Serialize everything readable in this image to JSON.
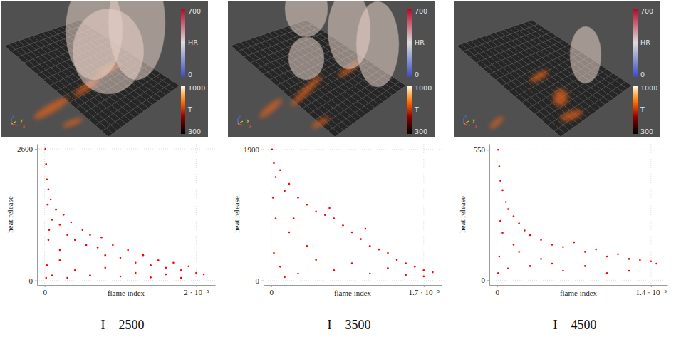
{
  "chart_data": [
    {
      "type": "scatter",
      "title": "I = 2500",
      "x_label": "flame index",
      "y_label": "heat release",
      "xlim": [
        -1e-06,
        2.25e-05
      ],
      "ylim": [
        -90,
        2700
      ],
      "xticks": [
        0,
        {
          "value": 2e-05,
          "label": "2 · 10⁻⁵"
        }
      ],
      "yticks": [
        0,
        2600
      ],
      "grid": true,
      "color": "#ff0000",
      "marker": "circle",
      "x": [
        1e-07,
        2e-07,
        3e-07,
        5e-07,
        4e-07,
        8e-07,
        1e-06,
        1.5e-06,
        2e-06,
        2.5e-06,
        3e-06,
        3.5e-06,
        4e-06,
        5e-06,
        5.5e-06,
        6e-06,
        7e-06,
        7.5e-06,
        8e-06,
        9e-06,
        1e-05,
        1.1e-05,
        1.2e-05,
        1.3e-05,
        1.4e-05,
        1.5e-05,
        1.6e-05,
        1.7e-05,
        1.8e-05,
        1.9e-05,
        2e-05,
        2.1e-05,
        3e-07,
        1e-06,
        2e-06,
        3e-06,
        4e-06,
        6e-06,
        8e-06,
        1e-05,
        1.2e-05,
        1.4e-05,
        1.6e-05,
        1.8e-05,
        5e-07,
        2e-06,
        2e-07,
        6e-07
      ],
      "values": [
        2600,
        2300,
        2000,
        1800,
        1500,
        1600,
        1200,
        1400,
        1100,
        1300,
        900,
        1150,
        800,
        1000,
        700,
        900,
        650,
        850,
        500,
        700,
        450,
        600,
        350,
        500,
        300,
        400,
        250,
        350,
        200,
        280,
        150,
        120,
        300,
        100,
        400,
        50,
        200,
        100,
        250,
        80,
        150,
        60,
        120,
        50,
        800,
        600,
        50,
        1000
      ],
      "colorbars": [
        {
          "label": "HR",
          "range": [
            0,
            700
          ],
          "ticks": [
            0,
            700
          ]
        },
        {
          "label": "T",
          "range": [
            300,
            1000
          ],
          "ticks": [
            300,
            1000
          ]
        }
      ],
      "view_axes": [
        "z",
        "y",
        "x"
      ]
    },
    {
      "type": "scatter",
      "title": "I = 3500",
      "x_label": "flame index",
      "y_label": "heat release",
      "xlim": [
        -8.5e-07,
        1.9e-05
      ],
      "ylim": [
        -65,
        1980
      ],
      "xticks": [
        0,
        {
          "value": 1.7e-05,
          "label": "1.7 · 10⁻⁵"
        }
      ],
      "yticks": [
        0,
        1900
      ],
      "grid": true,
      "color": "#ff0000",
      "marker": "circle",
      "x": [
        1e-07,
        3e-07,
        5e-07,
        1e-06,
        1.5e-06,
        2e-06,
        3e-06,
        4e-06,
        5e-06,
        6e-06,
        6.5e-06,
        7e-06,
        8e-06,
        9e-06,
        1e-05,
        1.05e-05,
        1.1e-05,
        1.2e-05,
        1.3e-05,
        1.4e-05,
        1.5e-05,
        1.6e-05,
        1.7e-05,
        1.8e-05,
        3e-07,
        1e-06,
        2e-06,
        3e-06,
        4e-06,
        5e-06,
        7e-06,
        9e-06,
        1.1e-05,
        1.3e-05,
        1.5e-05,
        1.7e-05,
        5e-07,
        1.5e-06,
        2e-07,
        2.5e-06
      ],
      "values": [
        1900,
        1700,
        1500,
        1600,
        1300,
        1400,
        1200,
        1100,
        1000,
        950,
        1050,
        900,
        800,
        700,
        600,
        750,
        500,
        450,
        400,
        300,
        250,
        200,
        150,
        120,
        400,
        200,
        700,
        100,
        500,
        300,
        150,
        250,
        100,
        180,
        80,
        60,
        900,
        50,
        1200,
        900
      ],
      "colorbars": [
        {
          "label": "HR",
          "range": [
            0,
            700
          ],
          "ticks": [
            0,
            700
          ]
        },
        {
          "label": "T",
          "range": [
            300,
            1000
          ],
          "ticks": [
            300,
            1000
          ]
        }
      ],
      "view_axes": [
        "z",
        "y",
        "x"
      ]
    },
    {
      "type": "scatter",
      "title": "I = 4500",
      "x_label": "flame index",
      "y_label": "heat release",
      "xlim": [
        -7e-07,
        1.55e-05
      ],
      "ylim": [
        -20,
        575
      ],
      "xticks": [
        0,
        {
          "value": 1.4e-05,
          "label": "1.4 · 10⁻⁵"
        }
      ],
      "yticks": [
        0,
        550
      ],
      "grid": true,
      "color": "#ff0000",
      "marker": "circle",
      "x": [
        1e-07,
        2e-07,
        3e-07,
        5e-07,
        8e-07,
        1e-06,
        1.5e-06,
        2e-06,
        2.5e-06,
        3e-06,
        4e-06,
        5e-06,
        6e-06,
        7e-06,
        8e-06,
        9e-06,
        1e-05,
        1.1e-05,
        1.2e-05,
        1.3e-05,
        1.4e-05,
        1.45e-05,
        2e-07,
        5e-07,
        1e-06,
        2e-06,
        3e-06,
        4e-06,
        6e-06,
        8e-06,
        1e-05,
        1.2e-05,
        3e-07,
        1.5e-06,
        1e-07,
        5e-06
      ],
      "values": [
        550,
        480,
        420,
        380,
        330,
        300,
        270,
        240,
        210,
        190,
        170,
        150,
        140,
        160,
        120,
        130,
        100,
        110,
        90,
        85,
        80,
        70,
        100,
        200,
        50,
        120,
        60,
        90,
        40,
        60,
        30,
        40,
        250,
        150,
        30,
        70
      ],
      "colorbars": [
        {
          "label": "HR",
          "range": [
            0,
            700
          ],
          "ticks": [
            0,
            700
          ]
        },
        {
          "label": "T",
          "range": [
            300,
            1000
          ],
          "ticks": [
            300,
            1000
          ]
        }
      ],
      "view_axes": [
        "z",
        "y",
        "x"
      ]
    }
  ]
}
